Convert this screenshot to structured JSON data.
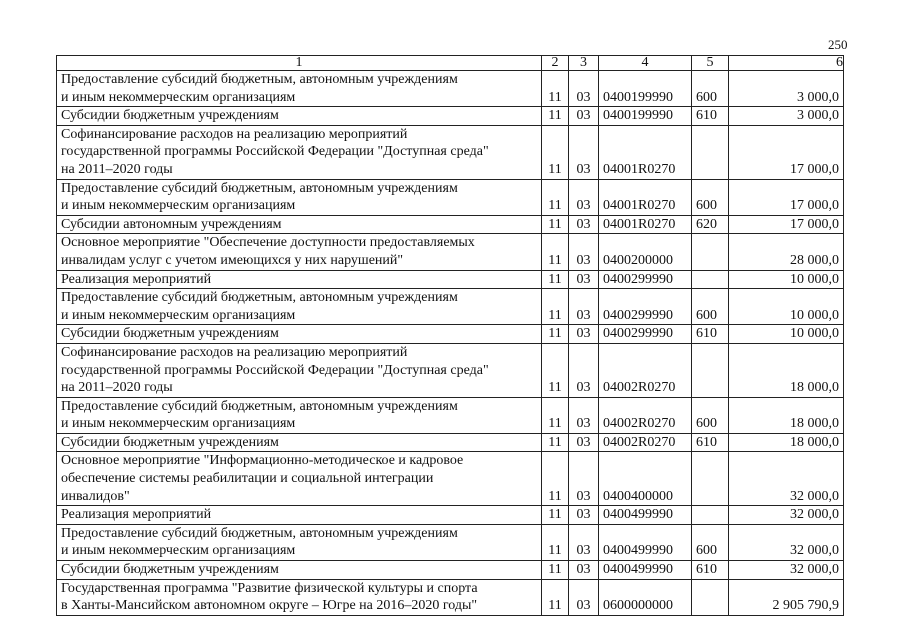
{
  "page_number": "250",
  "table": {
    "headers": [
      "1",
      "2",
      "3",
      "4",
      "5",
      "6"
    ],
    "rows": [
      {
        "name": "Предоставление субсидий бюджетным, автономным учреждениям\nи иным некоммерческим организациям",
        "c2": "11",
        "c3": "03",
        "c4": "0400199990",
        "c5": "600",
        "c6": "3 000,0"
      },
      {
        "name": "Субсидии бюджетным учреждениям",
        "c2": "11",
        "c3": "03",
        "c4": "0400199990",
        "c5": "610",
        "c6": "3 000,0"
      },
      {
        "name": "Софинансирование расходов на реализацию мероприятий\nгосударственной программы Российской Федерации \"Доступная среда\"\nна 2011–2020 годы",
        "c2": "11",
        "c3": "03",
        "c4": "04001R0270",
        "c5": "",
        "c6": "17 000,0"
      },
      {
        "name": "Предоставление субсидий бюджетным, автономным учреждениям\nи иным некоммерческим организациям",
        "c2": "11",
        "c3": "03",
        "c4": "04001R0270",
        "c5": "600",
        "c6": "17 000,0"
      },
      {
        "name": "Субсидии автономным учреждениям",
        "c2": "11",
        "c3": "03",
        "c4": "04001R0270",
        "c5": "620",
        "c6": "17 000,0"
      },
      {
        "name": "Основное мероприятие \"Обеспечение доступности предоставляемых\nинвалидам услуг с учетом имеющихся у них нарушений\"",
        "c2": "11",
        "c3": "03",
        "c4": "0400200000",
        "c5": "",
        "c6": "28 000,0"
      },
      {
        "name": "Реализация мероприятий",
        "c2": "11",
        "c3": "03",
        "c4": "0400299990",
        "c5": "",
        "c6": "10 000,0"
      },
      {
        "name": "Предоставление субсидий бюджетным, автономным учреждениям\nи иным некоммерческим организациям",
        "c2": "11",
        "c3": "03",
        "c4": "0400299990",
        "c5": "600",
        "c6": "10 000,0"
      },
      {
        "name": "Субсидии бюджетным учреждениям",
        "c2": "11",
        "c3": "03",
        "c4": "0400299990",
        "c5": "610",
        "c6": "10 000,0"
      },
      {
        "name": "Софинансирование расходов на реализацию мероприятий\nгосударственной программы Российской Федерации \"Доступная среда\"\nна 2011–2020 годы",
        "c2": "11",
        "c3": "03",
        "c4": "04002R0270",
        "c5": "",
        "c6": "18 000,0"
      },
      {
        "name": "Предоставление субсидий бюджетным, автономным учреждениям\nи иным некоммерческим организациям",
        "c2": "11",
        "c3": "03",
        "c4": "04002R0270",
        "c5": "600",
        "c6": "18 000,0"
      },
      {
        "name": "Субсидии бюджетным учреждениям",
        "c2": "11",
        "c3": "03",
        "c4": "04002R0270",
        "c5": "610",
        "c6": "18 000,0"
      },
      {
        "name": "Основное мероприятие \"Информационно-методическое и кадровое\nобеспечение системы реабилитации и социальной интеграции\nинвалидов\"",
        "c2": "11",
        "c3": "03",
        "c4": "0400400000",
        "c5": "",
        "c6": "32 000,0"
      },
      {
        "name": "Реализация мероприятий",
        "c2": "11",
        "c3": "03",
        "c4": "0400499990",
        "c5": "",
        "c6": "32 000,0"
      },
      {
        "name": "Предоставление субсидий бюджетным, автономным учреждениям\nи иным некоммерческим организациям",
        "c2": "11",
        "c3": "03",
        "c4": "0400499990",
        "c5": "600",
        "c6": "32 000,0"
      },
      {
        "name": "Субсидии бюджетным учреждениям",
        "c2": "11",
        "c3": "03",
        "c4": "0400499990",
        "c5": "610",
        "c6": "32 000,0"
      },
      {
        "name": "Государственная программа \"Развитие физической культуры и спорта\nв Ханты-Мансийском автономном округе – Югре на 2016–2020 годы\"",
        "c2": "11",
        "c3": "03",
        "c4": "0600000000",
        "c5": "",
        "c6": "2 905 790,9"
      }
    ]
  }
}
